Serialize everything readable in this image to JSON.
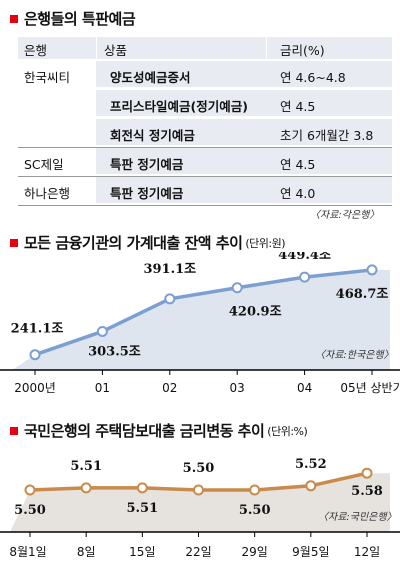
{
  "table_section": {
    "title": "은행들의 특판예금",
    "headers": {
      "bank": "은행",
      "product": "상품",
      "rate": "금리(%)"
    },
    "rows": [
      {
        "bank": "한국씨티",
        "product": "양도성예금증서",
        "rate": "연 4.6~4.8"
      },
      {
        "bank": "",
        "product": "프리스타일예금(정기예금)",
        "rate": "연 4.5"
      },
      {
        "bank": "",
        "product": "회전식 정기예금",
        "rate": "초기 6개월간 3.8"
      },
      {
        "bank": "SC제일",
        "product": "특판 정기예금",
        "rate": "연 4.5"
      },
      {
        "bank": "하나은행",
        "product": "특판 정기예금",
        "rate": "연 4.0"
      }
    ],
    "source": "〈자료:각은행〉"
  },
  "chart_data": [
    {
      "type": "area",
      "title": "모든 금융기관의 가계대출 잔액 추이",
      "unit": "(단위:원)",
      "categories": [
        "2000년",
        "01",
        "02",
        "03",
        "04",
        "05년 상반기"
      ],
      "values": [
        241.1,
        303.5,
        391.1,
        420.9,
        449.4,
        468.7
      ],
      "labels": [
        "241.1조",
        "303.5조",
        "391.1조",
        "420.9조",
        "449.4조",
        "468.7조"
      ],
      "ylim": [
        200,
        490
      ],
      "color": "#7b9fd0",
      "fill": "#dfe5ee",
      "source": "〈자료:한국은행〉"
    },
    {
      "type": "area",
      "title": "국민은행의 주택담보대출 금리변동 추이",
      "unit": "(단위:%)",
      "categories": [
        "8월1일",
        "8일",
        "15일",
        "22일",
        "29일",
        "9월5일",
        "12일"
      ],
      "values": [
        5.5,
        5.51,
        5.51,
        5.5,
        5.5,
        5.52,
        5.58
      ],
      "labels": [
        "5.50",
        "5.51",
        "5.51",
        "5.50",
        "5.50",
        "5.52",
        "5.58"
      ],
      "ylim": [
        5.3,
        5.7
      ],
      "color": "#c98a4a",
      "fill": "#e6e3df",
      "source": "〈자료:국민은행〉"
    }
  ]
}
